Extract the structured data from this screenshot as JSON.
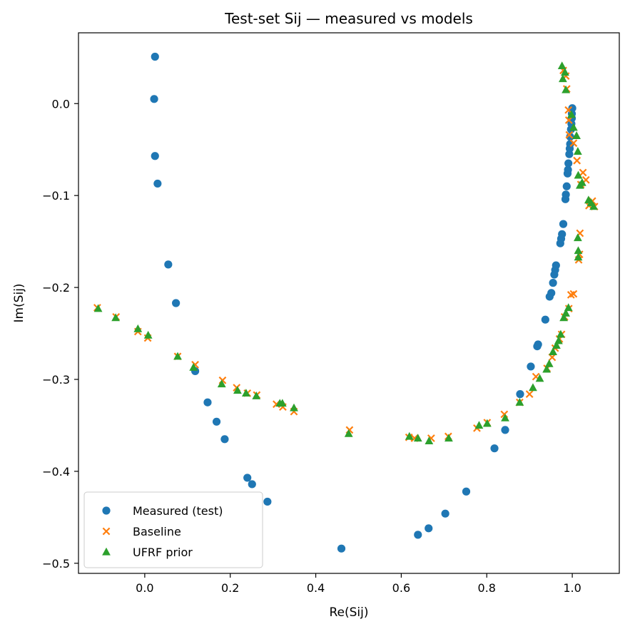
{
  "chart_data": {
    "type": "scatter",
    "title": "Test-set Sij — measured vs models",
    "xlabel": "Re(Sij)",
    "ylabel": "Im(Sij)",
    "xlim": [
      -0.155,
      1.11
    ],
    "ylim": [
      -0.511,
      0.077
    ],
    "xticks": [
      0.0,
      0.2,
      0.4,
      0.6,
      0.8,
      1.0
    ],
    "xtick_labels": [
      "0.0",
      "0.2",
      "0.4",
      "0.6",
      "0.8",
      "1.0"
    ],
    "yticks": [
      0.0,
      -0.1,
      -0.2,
      -0.3,
      -0.4,
      -0.5
    ],
    "ytick_labels": [
      "0.0",
      "−0.1",
      "−0.2",
      "−0.3",
      "−0.4",
      "−0.5"
    ],
    "grid": false,
    "legend_position": "lower-left",
    "series": [
      {
        "name": "Measured (test)",
        "marker": "circle",
        "color": "#1f77b4",
        "points": [
          [
            0.024,
            0.051
          ],
          [
            0.022,
            0.005
          ],
          [
            0.024,
            -0.057
          ],
          [
            0.03,
            -0.087
          ],
          [
            0.055,
            -0.175
          ],
          [
            0.073,
            -0.217
          ],
          [
            0.118,
            -0.291
          ],
          [
            0.147,
            -0.325
          ],
          [
            0.168,
            -0.346
          ],
          [
            0.187,
            -0.365
          ],
          [
            0.24,
            -0.407
          ],
          [
            0.251,
            -0.414
          ],
          [
            0.287,
            -0.433
          ],
          [
            0.46,
            -0.484
          ],
          [
            0.639,
            -0.469
          ],
          [
            0.664,
            -0.462
          ],
          [
            0.703,
            -0.446
          ],
          [
            0.752,
            -0.422
          ],
          [
            0.818,
            -0.375
          ],
          [
            0.843,
            -0.355
          ],
          [
            0.878,
            -0.316
          ],
          [
            0.903,
            -0.286
          ],
          [
            0.918,
            -0.264
          ],
          [
            0.92,
            -0.262
          ],
          [
            0.937,
            -0.235
          ],
          [
            0.947,
            -0.21
          ],
          [
            0.951,
            -0.206
          ],
          [
            0.955,
            -0.195
          ],
          [
            0.958,
            -0.186
          ],
          [
            0.96,
            -0.181
          ],
          [
            0.962,
            -0.176
          ],
          [
            0.972,
            -0.152
          ],
          [
            0.974,
            -0.147
          ],
          [
            0.976,
            -0.142
          ],
          [
            0.979,
            -0.131
          ],
          [
            0.984,
            -0.104
          ],
          [
            0.985,
            -0.099
          ],
          [
            0.987,
            -0.09
          ],
          [
            0.989,
            -0.076
          ],
          [
            0.99,
            -0.072
          ],
          [
            0.991,
            -0.065
          ],
          [
            0.993,
            -0.055
          ],
          [
            0.994,
            -0.049
          ],
          [
            0.995,
            -0.044
          ],
          [
            0.995,
            -0.036
          ],
          [
            0.997,
            -0.028
          ],
          [
            0.998,
            -0.022
          ],
          [
            0.999,
            -0.016
          ],
          [
            0.999,
            -0.011
          ],
          [
            1.0,
            -0.005
          ]
        ]
      },
      {
        "name": "Baseline",
        "marker": "x",
        "color": "#ff7f0e",
        "points": [
          [
            -0.111,
            -0.222
          ],
          [
            -0.067,
            -0.232
          ],
          [
            -0.016,
            -0.248
          ],
          [
            0.007,
            -0.255
          ],
          [
            0.077,
            -0.275
          ],
          [
            0.118,
            -0.284
          ],
          [
            0.182,
            -0.301
          ],
          [
            0.215,
            -0.309
          ],
          [
            0.24,
            -0.315
          ],
          [
            0.262,
            -0.317
          ],
          [
            0.308,
            -0.327
          ],
          [
            0.323,
            -0.33
          ],
          [
            0.349,
            -0.335
          ],
          [
            0.479,
            -0.355
          ],
          [
            0.618,
            -0.363
          ],
          [
            0.631,
            -0.364
          ],
          [
            0.67,
            -0.364
          ],
          [
            0.71,
            -0.362
          ],
          [
            0.777,
            -0.353
          ],
          [
            0.801,
            -0.347
          ],
          [
            0.841,
            -0.338
          ],
          [
            0.877,
            -0.325
          ],
          [
            0.9,
            -0.316
          ],
          [
            0.915,
            -0.297
          ],
          [
            0.941,
            -0.288
          ],
          [
            0.953,
            -0.276
          ],
          [
            0.96,
            -0.266
          ],
          [
            0.97,
            -0.256
          ],
          [
            0.975,
            -0.251
          ],
          [
            0.982,
            -0.232
          ],
          [
            0.992,
            -0.223
          ],
          [
            0.997,
            -0.208
          ],
          [
            1.003,
            -0.207
          ],
          [
            1.015,
            -0.17
          ],
          [
            1.017,
            -0.164
          ],
          [
            1.018,
            -0.141
          ],
          [
            1.02,
            -0.088
          ],
          [
            1.025,
            -0.075
          ],
          [
            1.032,
            -0.083
          ],
          [
            1.039,
            -0.111
          ],
          [
            1.047,
            -0.106
          ],
          [
            1.052,
            -0.112
          ],
          [
            1.011,
            -0.062
          ],
          [
            1.003,
            -0.043
          ],
          [
            0.993,
            -0.034
          ],
          [
            0.992,
            -0.018
          ],
          [
            0.991,
            -0.007
          ],
          [
            0.987,
            0.016
          ],
          [
            0.985,
            0.03
          ],
          [
            0.979,
            0.036
          ]
        ]
      },
      {
        "name": "UFRF prior",
        "marker": "triangle",
        "color": "#2ca02c",
        "points": [
          [
            -0.109,
            -0.223
          ],
          [
            -0.068,
            -0.233
          ],
          [
            -0.016,
            -0.245
          ],
          [
            0.008,
            -0.252
          ],
          [
            0.077,
            -0.275
          ],
          [
            0.114,
            -0.287
          ],
          [
            0.18,
            -0.305
          ],
          [
            0.217,
            -0.312
          ],
          [
            0.237,
            -0.315
          ],
          [
            0.261,
            -0.318
          ],
          [
            0.316,
            -0.326
          ],
          [
            0.322,
            -0.326
          ],
          [
            0.349,
            -0.331
          ],
          [
            0.477,
            -0.359
          ],
          [
            0.619,
            -0.362
          ],
          [
            0.639,
            -0.364
          ],
          [
            0.665,
            -0.367
          ],
          [
            0.711,
            -0.364
          ],
          [
            0.782,
            -0.35
          ],
          [
            0.801,
            -0.348
          ],
          [
            0.843,
            -0.342
          ],
          [
            0.877,
            -0.325
          ],
          [
            0.908,
            -0.309
          ],
          [
            0.924,
            -0.299
          ],
          [
            0.94,
            -0.289
          ],
          [
            0.946,
            -0.283
          ],
          [
            0.955,
            -0.27
          ],
          [
            0.963,
            -0.263
          ],
          [
            0.968,
            -0.258
          ],
          [
            0.973,
            -0.251
          ],
          [
            0.98,
            -0.233
          ],
          [
            0.985,
            -0.228
          ],
          [
            0.991,
            -0.222
          ],
          [
            1.014,
            -0.167
          ],
          [
            1.014,
            -0.16
          ],
          [
            1.013,
            -0.146
          ],
          [
            1.018,
            -0.089
          ],
          [
            1.023,
            -0.086
          ],
          [
            1.014,
            -0.078
          ],
          [
            1.038,
            -0.105
          ],
          [
            1.044,
            -0.108
          ],
          [
            1.05,
            -0.112
          ],
          [
            1.013,
            -0.052
          ],
          [
            1.01,
            -0.035
          ],
          [
            1.003,
            -0.026
          ],
          [
            0.998,
            -0.012
          ],
          [
            0.985,
            0.015
          ],
          [
            0.978,
            0.027
          ],
          [
            0.976,
            0.041
          ],
          [
            0.983,
            0.034
          ]
        ]
      }
    ]
  }
}
